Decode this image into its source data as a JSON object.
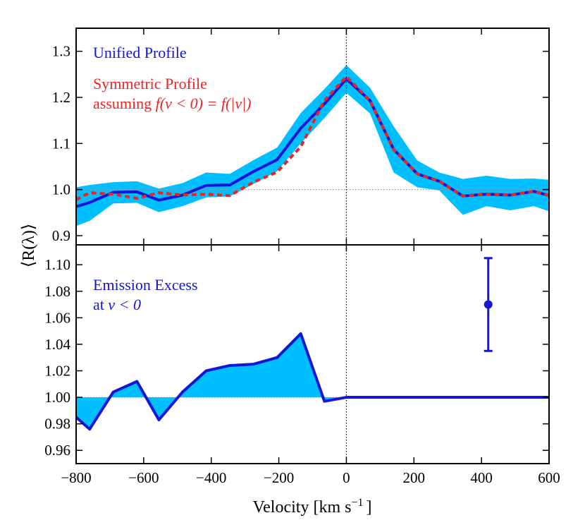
{
  "chart_data": [
    {
      "type": "line",
      "panel": "top",
      "xlim": [
        -800,
        600
      ],
      "ylim": [
        0.88,
        1.35
      ],
      "yticks": [
        0.9,
        1.0,
        1.1,
        1.2,
        1.3
      ],
      "ytick_labels": [
        "0.9",
        "1.0",
        "1.1",
        "1.2",
        "1.3"
      ],
      "reference_lines": {
        "y": 1.0,
        "x": 0
      },
      "legend": {
        "unified": "Unified Profile",
        "symmetric_line1": "Symmetric Profile",
        "symmetric_line2_prefix": "assuming ",
        "symmetric_line2_math": "f(v < 0) = f(|v|)"
      },
      "x": [
        -800,
        -760,
        -690,
        -620,
        -555,
        -485,
        -415,
        -345,
        -275,
        -205,
        -135,
        -65,
        0,
        70,
        140,
        210,
        275,
        345,
        415,
        485,
        555,
        600
      ],
      "series": [
        {
          "name": "Unified Profile",
          "color": "#1515d9",
          "values": [
            0.963,
            0.972,
            0.994,
            0.995,
            0.977,
            0.988,
            1.009,
            1.01,
            1.039,
            1.065,
            1.133,
            1.186,
            1.24,
            1.193,
            1.087,
            1.034,
            1.018,
            0.986,
            0.99,
            0.988,
            0.996,
            0.987
          ],
          "band_upper": [
            1.005,
            1.01,
            1.016,
            1.018,
            1.002,
            1.014,
            1.037,
            1.034,
            1.064,
            1.091,
            1.166,
            1.218,
            1.27,
            1.221,
            1.137,
            1.063,
            1.037,
            1.023,
            1.03,
            1.023,
            1.024,
            1.021
          ],
          "band_lower": [
            0.921,
            0.932,
            0.97,
            0.971,
            0.951,
            0.964,
            0.983,
            0.985,
            1.012,
            1.04,
            1.1,
            1.155,
            1.21,
            1.165,
            1.037,
            1.005,
            0.998,
            0.945,
            0.964,
            0.955,
            0.964,
            0.953
          ]
        },
        {
          "name": "Symmetric Profile",
          "color": "#e82525",
          "style": "dashed",
          "values": [
            0.978,
            0.993,
            0.99,
            0.981,
            0.993,
            0.988,
            0.99,
            0.987,
            1.016,
            1.038,
            1.093,
            1.193,
            1.245,
            1.193,
            1.087,
            1.034,
            1.018,
            0.986,
            0.99,
            0.988,
            0.996,
            0.987
          ]
        }
      ],
      "band_color": "#00bfff"
    },
    {
      "type": "area",
      "panel": "bottom",
      "xlim": [
        -800,
        600
      ],
      "ylim": [
        0.95,
        1.115
      ],
      "yticks": [
        0.96,
        0.98,
        1.0,
        1.02,
        1.04,
        1.06,
        1.08,
        1.1
      ],
      "ytick_labels": [
        "0.96",
        "0.98",
        "1.00",
        "1.02",
        "1.04",
        "1.06",
        "1.08",
        "1.10"
      ],
      "xticks": [
        -800,
        -600,
        -400,
        -200,
        0,
        200,
        400,
        600
      ],
      "xtick_labels": [
        "−800",
        "−600",
        "−400",
        "−200",
        "0",
        "200",
        "400",
        "600"
      ],
      "reference_lines": {
        "y": 1.0,
        "x": 0
      },
      "legend": {
        "line1": "Emission Excess",
        "line2_prefix": "at ",
        "line2_math": "v < 0"
      },
      "x": [
        -800,
        -760,
        -690,
        -620,
        -555,
        -485,
        -415,
        -345,
        -275,
        -205,
        -135,
        -65,
        0,
        70,
        140,
        210,
        275,
        345,
        415,
        485,
        555,
        600
      ],
      "series": [
        {
          "name": "Emission Excess",
          "color": "#1515d9",
          "fill_color": "#00bfff",
          "values": [
            0.985,
            0.976,
            1.004,
            1.012,
            0.983,
            1.004,
            1.02,
            1.024,
            1.025,
            1.03,
            1.048,
            0.997,
            1.0,
            1.0,
            1.0,
            1.0,
            1.0,
            1.0,
            1.0,
            1.0,
            1.0,
            1.0
          ]
        }
      ],
      "error_point": {
        "x": 420,
        "y": 1.07,
        "yerr_low": 1.035,
        "yerr_high": 1.105,
        "color": "#1515d9"
      }
    }
  ],
  "axes": {
    "ylabel": "⟨R(λ)⟩",
    "xlabel_main": "Velocity [km s",
    "xlabel_sup": "−1",
    "xlabel_end": "]"
  }
}
